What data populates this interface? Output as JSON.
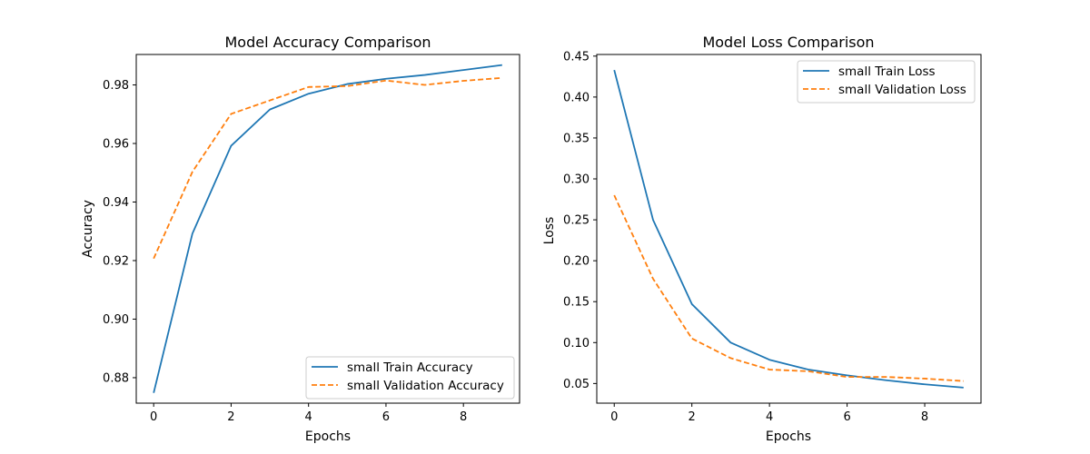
{
  "colors": {
    "train": "#1f77b4",
    "validation": "#ff7f0e"
  },
  "chart_data": [
    {
      "type": "line",
      "title": "Model Accuracy Comparison",
      "xlabel": "Epochs",
      "ylabel": "Accuracy",
      "xlim": [
        -0.45,
        9.45
      ],
      "ylim": [
        0.8713,
        0.9904
      ],
      "xticks": [
        "0",
        "2",
        "4",
        "6",
        "8"
      ],
      "yticks": [
        "0.88",
        "0.90",
        "0.92",
        "0.94",
        "0.96",
        "0.98"
      ],
      "grid": false,
      "legend_position": "lower-right",
      "x": [
        0,
        1,
        2,
        3,
        4,
        5,
        6,
        7,
        8,
        9
      ],
      "series": [
        {
          "name": "small Train Accuracy",
          "style": "solid",
          "values": [
            0.8748,
            0.9292,
            0.9592,
            0.9716,
            0.977,
            0.9803,
            0.9821,
            0.9834,
            0.9851,
            0.9868
          ]
        },
        {
          "name": "small Validation Accuracy",
          "style": "dashed",
          "values": [
            0.9207,
            0.9503,
            0.9701,
            0.9747,
            0.9793,
            0.9796,
            0.9815,
            0.98,
            0.9814,
            0.9824
          ]
        }
      ]
    },
    {
      "type": "line",
      "title": "Model Loss Comparison",
      "xlabel": "Epochs",
      "ylabel": "Loss",
      "xlim": [
        -0.45,
        9.45
      ],
      "ylim": [
        0.026,
        0.452
      ],
      "xticks": [
        "0",
        "2",
        "4",
        "6",
        "8"
      ],
      "yticks": [
        "0.05",
        "0.10",
        "0.15",
        "0.20",
        "0.25",
        "0.30",
        "0.35",
        "0.40",
        "0.45"
      ],
      "grid": false,
      "legend_position": "upper-right",
      "x": [
        0,
        1,
        2,
        3,
        4,
        5,
        6,
        7,
        8,
        9
      ],
      "series": [
        {
          "name": "small Train Loss",
          "style": "solid",
          "values": [
            0.433,
            0.25,
            0.147,
            0.1,
            0.079,
            0.067,
            0.06,
            0.054,
            0.049,
            0.045
          ]
        },
        {
          "name": "small Validation Loss",
          "style": "dashed",
          "values": [
            0.28,
            0.178,
            0.105,
            0.081,
            0.067,
            0.065,
            0.058,
            0.058,
            0.056,
            0.053
          ]
        }
      ]
    }
  ]
}
